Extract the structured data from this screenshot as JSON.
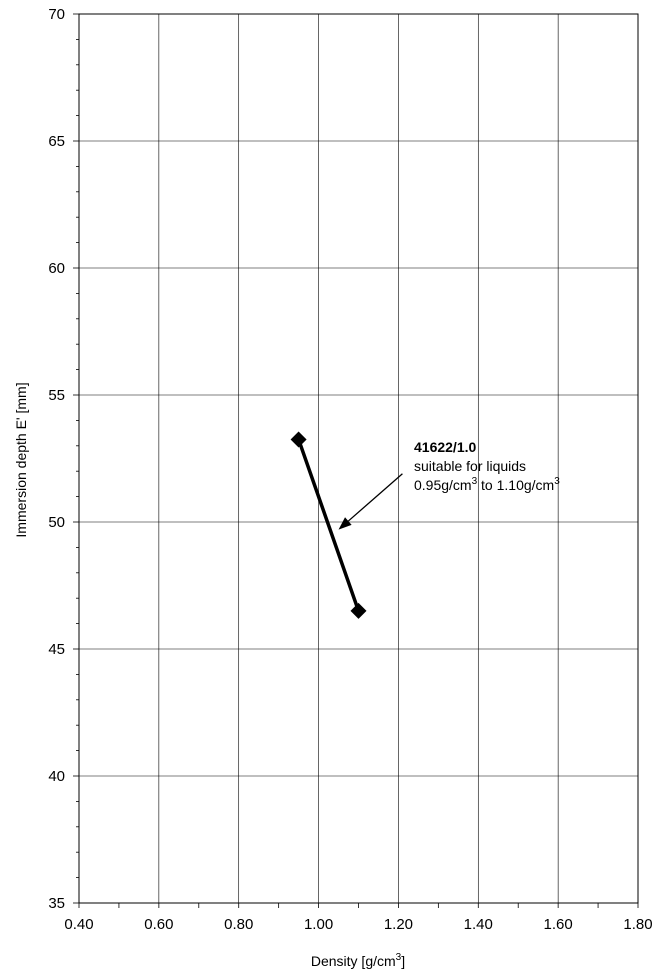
{
  "chart_data": {
    "type": "line",
    "xlabel": "Density [g/cm",
    "xlabel_sup": "3",
    "xlabel_close": "]",
    "ylabel": "Immersion depth E' [mm]",
    "xlim": [
      0.4,
      1.8
    ],
    "ylim": [
      35,
      70
    ],
    "x_ticks": [
      0.4,
      0.6,
      0.8,
      1.0,
      1.2,
      1.4,
      1.6,
      1.8
    ],
    "x_tick_labels": [
      "0.40",
      "0.60",
      "0.80",
      "1.00",
      "1.20",
      "1.40",
      "1.60",
      "1.80"
    ],
    "y_ticks": [
      35,
      40,
      45,
      50,
      55,
      60,
      65,
      70
    ],
    "y_tick_labels": [
      "35",
      "40",
      "45",
      "50",
      "55",
      "60",
      "65",
      "70"
    ],
    "x_minor_step": 0.1,
    "y_minor_step": 1,
    "grid": true,
    "series": [
      {
        "x": [
          0.95,
          1.1
        ],
        "y": [
          53.25,
          46.5
        ],
        "color": "#000000",
        "marker": "diamond"
      }
    ],
    "annotation": {
      "title": "41622/1.0",
      "line2": "suitable for liquids",
      "line3_a": "0.95g/cm",
      "line3_sup1": "3",
      "line3_b": " to 1.10g/cm",
      "line3_sup2": "3",
      "arrow_from": [
        1.21,
        51.9
      ],
      "arrow_to": [
        1.05,
        49.7
      ]
    }
  }
}
